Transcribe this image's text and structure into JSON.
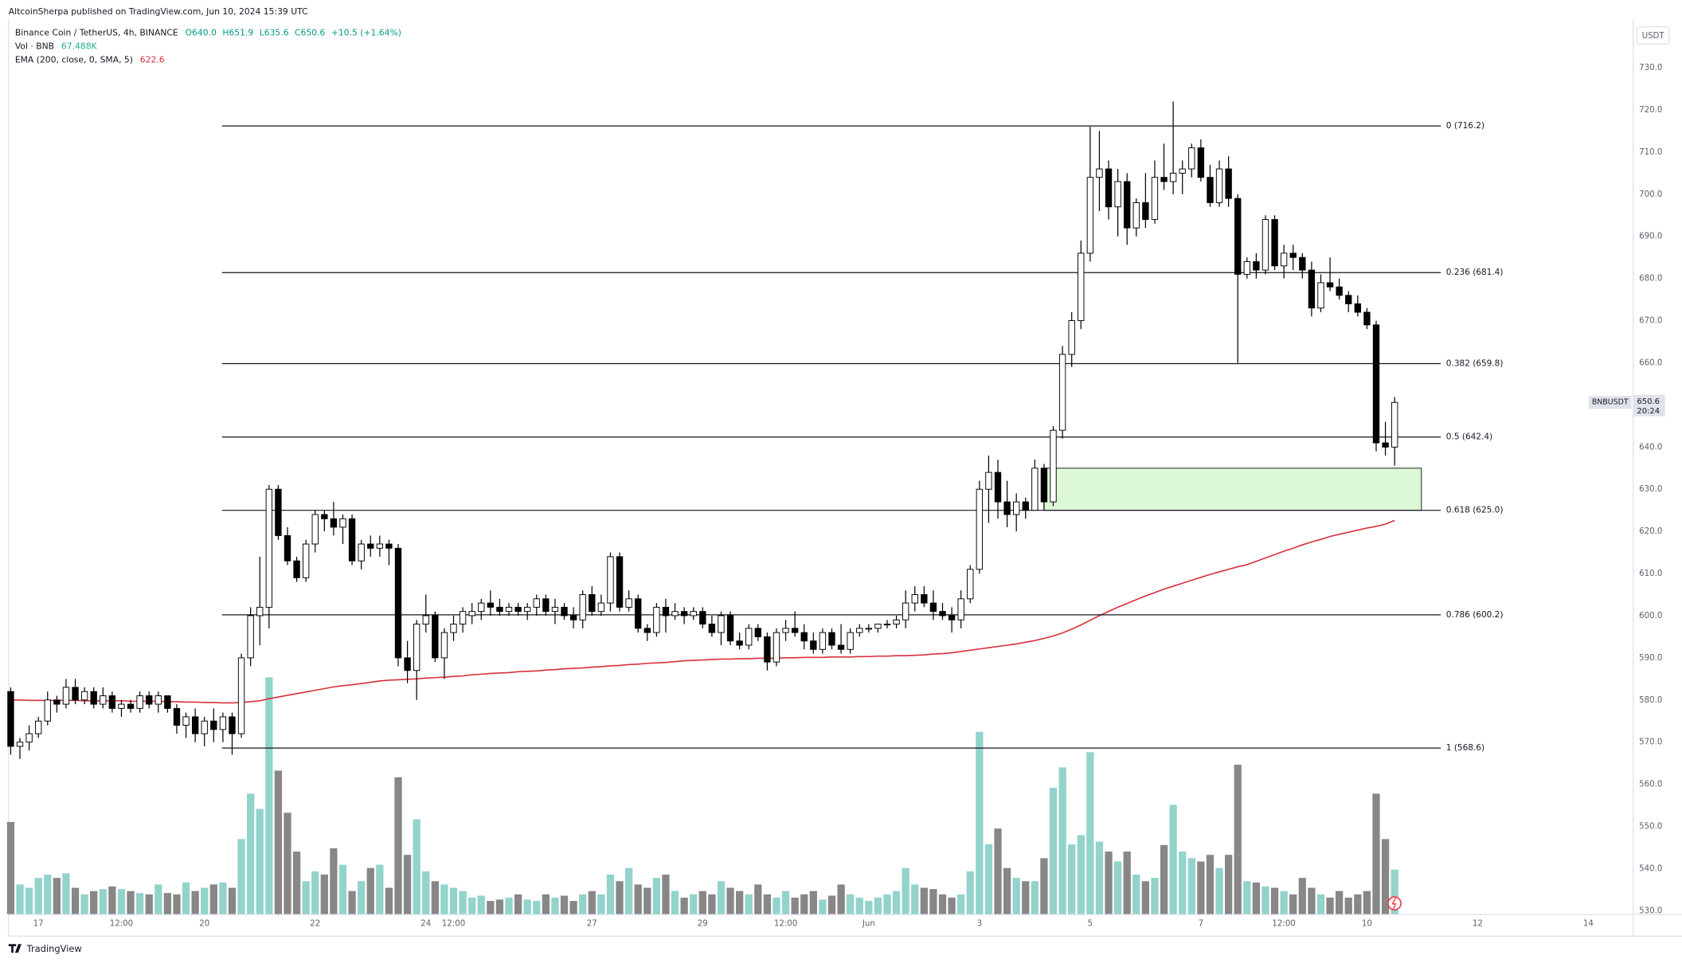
{
  "header": {
    "published": "AltcoinSherpa published on TradingView.com, Jun 10, 2024 15:39 UTC",
    "symbol": "Binance Coin / TetherUS, 4h, BINANCE",
    "ohlc": [
      "O640.0",
      "H651.9",
      "L635.6",
      "C650.6",
      "+10.5 (+1.64%)"
    ],
    "volume_label": "Vol · BNB",
    "volume_value": "67.488K",
    "ema_label": "EMA (200, close, 0, SMA, 5)",
    "ema_value": "622.6",
    "logo": "TradingView"
  },
  "chart_data": {
    "type": "candlestick",
    "currency": "USDT",
    "symbol_tag": "BNBUSDT",
    "last_price": 650.6,
    "countdown": "20:24",
    "up_color": "#ffffff",
    "down_color": "#000000",
    "open": [
      582,
      569,
      570,
      572,
      575,
      580,
      579,
      583,
      580,
      582,
      579,
      581,
      578,
      579,
      578,
      581,
      579,
      581,
      578,
      574,
      576,
      572,
      575,
      573,
      576,
      572,
      590,
      600,
      602,
      630,
      619,
      613,
      609,
      617,
      624,
      623,
      621,
      623,
      613,
      617,
      616,
      617,
      616,
      590,
      587,
      598,
      600,
      590,
      596,
      598,
      600,
      601,
      603,
      602,
      601,
      602,
      601,
      602,
      604,
      601,
      602,
      600,
      599,
      605,
      601,
      603,
      614,
      602,
      604,
      597,
      596,
      602,
      600,
      601,
      600,
      601,
      598,
      596,
      600,
      594,
      593,
      597,
      595,
      589,
      596,
      597,
      596,
      594,
      592,
      596,
      593,
      592,
      596,
      597,
      597,
      598,
      598,
      599,
      603,
      605,
      603,
      601,
      600,
      599,
      604,
      611,
      630,
      634,
      627,
      624,
      627,
      625,
      635,
      627,
      644,
      662,
      670,
      686,
      704,
      706,
      697,
      703,
      692,
      698,
      694,
      704,
      703,
      705,
      706,
      711,
      704,
      698,
      706,
      699,
      681,
      684,
      682,
      694,
      683,
      686,
      685,
      682,
      673,
      679,
      678,
      676,
      674,
      672,
      669,
      641,
      640
    ],
    "high": [
      583,
      571,
      574,
      576,
      582,
      581,
      585,
      585,
      583,
      583,
      583,
      582,
      580,
      580,
      582,
      582,
      582,
      581,
      579,
      577,
      578,
      576,
      578,
      577,
      577,
      591,
      602,
      614,
      631,
      631,
      621,
      614,
      618,
      625,
      625,
      627,
      624,
      624,
      618,
      619,
      619,
      618,
      617,
      594,
      599,
      605,
      601,
      597,
      600,
      602,
      603,
      604,
      606,
      604,
      603,
      603,
      603,
      605,
      605,
      604,
      603,
      602,
      606,
      607,
      605,
      615,
      615,
      606,
      605,
      598,
      603,
      604,
      603,
      602,
      602,
      602,
      600,
      601,
      601,
      596,
      598,
      598,
      596,
      597,
      599,
      601,
      598,
      596,
      597,
      597,
      598,
      597,
      598,
      598,
      598,
      599,
      600,
      606,
      607,
      607,
      606,
      603,
      602,
      606,
      612,
      632,
      638,
      637,
      632,
      629,
      628,
      637,
      636,
      645,
      664,
      672,
      689,
      716,
      715,
      708,
      706,
      705,
      699,
      705,
      708,
      712,
      722,
      708,
      712,
      713,
      707,
      708,
      709,
      700,
      685,
      686,
      695,
      695,
      688,
      688,
      686,
      684,
      681,
      685,
      680,
      677,
      676,
      673,
      670,
      646,
      651.9
    ],
    "low": [
      567,
      566,
      568,
      571,
      574,
      577,
      578,
      579,
      579,
      578,
      578,
      577,
      576,
      577,
      577,
      578,
      577,
      577,
      572,
      571,
      570,
      569,
      570,
      570,
      567,
      571,
      588,
      593,
      597,
      618,
      612,
      608,
      608,
      615,
      620,
      619,
      617,
      612,
      611,
      614,
      614,
      612,
      588,
      584,
      580,
      596,
      589,
      585,
      594,
      596,
      598,
      599,
      600,
      600,
      600,
      600,
      599,
      600,
      600,
      598,
      599,
      597,
      597,
      600,
      600,
      601,
      601,
      601,
      596,
      594,
      595,
      596,
      599,
      598,
      599,
      597,
      595,
      593,
      593,
      592,
      592,
      594,
      587,
      588,
      594,
      595,
      592,
      591,
      591,
      592,
      591,
      591,
      595,
      596,
      596,
      597,
      597,
      597,
      601,
      602,
      599,
      599,
      596,
      597,
      603,
      610,
      622,
      623,
      621,
      620,
      623,
      625,
      625,
      626,
      642,
      659,
      668,
      684,
      696,
      694,
      690,
      688,
      690,
      692,
      693,
      701,
      700,
      700,
      704,
      703,
      697,
      697,
      697,
      660,
      680,
      680,
      681,
      682,
      680,
      682,
      680,
      671,
      672,
      677,
      675,
      672,
      671,
      668,
      639,
      638,
      635.6
    ],
    "close": [
      569,
      570,
      572,
      575,
      580,
      579,
      583,
      580,
      582,
      579,
      581,
      578,
      579,
      578,
      581,
      579,
      581,
      578,
      574,
      576,
      572,
      575,
      573,
      576,
      572,
      590,
      600,
      602,
      630,
      619,
      613,
      609,
      617,
      624,
      623,
      621,
      623,
      613,
      617,
      616,
      617,
      616,
      590,
      587,
      598,
      600,
      590,
      596,
      598,
      601,
      601,
      603,
      602,
      601,
      602,
      601,
      602,
      604,
      601,
      602,
      600,
      599,
      605,
      601,
      603,
      614,
      602,
      604,
      597,
      596,
      602,
      600,
      601,
      600,
      601,
      598,
      596,
      600,
      594,
      593,
      597,
      595,
      589,
      596,
      597,
      596,
      594,
      592,
      596,
      593,
      592,
      596,
      597,
      597,
      598,
      598,
      599,
      603,
      605,
      603,
      601,
      600,
      599,
      604,
      611,
      630,
      634,
      627,
      624,
      627,
      625,
      635,
      627,
      644,
      662,
      670,
      686,
      704,
      706,
      697,
      703,
      692,
      698,
      694,
      704,
      703,
      705,
      706,
      711,
      704,
      698,
      706,
      699,
      681,
      684,
      682,
      694,
      683,
      686,
      685,
      682,
      673,
      679,
      678,
      676,
      674,
      672,
      669,
      641,
      640,
      650.6
    ],
    "volume": {
      "up_color": "#92d3cc",
      "down_color": "#878787",
      "ylim": [
        0,
        1360
      ],
      "values": [
        140,
        45,
        40,
        55,
        60,
        55,
        62,
        40,
        30,
        35,
        38,
        42,
        38,
        35,
        32,
        30,
        45,
        32,
        30,
        48,
        35,
        40,
        45,
        48,
        40,
        114,
        183,
        160,
        360,
        218,
        154,
        95,
        50,
        65,
        60,
        100,
        75,
        35,
        50,
        70,
        75,
        40,
        208,
        90,
        144,
        65,
        50,
        45,
        40,
        35,
        25,
        28,
        20,
        22,
        25,
        30,
        22,
        20,
        30,
        25,
        28,
        20,
        30,
        35,
        30,
        60,
        50,
        70,
        45,
        40,
        55,
        60,
        35,
        25,
        30,
        35,
        30,
        50,
        40,
        35,
        30,
        45,
        30,
        25,
        35,
        25,
        30,
        35,
        22,
        28,
        45,
        30,
        25,
        20,
        25,
        30,
        35,
        70,
        45,
        40,
        38,
        30,
        25,
        30,
        65,
        277,
        106,
        130,
        70,
        55,
        50,
        50,
        85,
        192,
        223,
        106,
        120,
        246,
        110,
        95,
        80,
        95,
        60,
        50,
        55,
        105,
        166,
        95,
        85,
        80,
        90,
        70,
        90,
        227,
        50,
        48,
        42,
        40,
        35,
        30,
        55,
        40,
        30,
        25,
        35,
        25,
        30,
        35,
        183,
        114,
        67.488
      ]
    },
    "ema": {
      "color": "#d7313d",
      "values": [
        580.0,
        580.0,
        579.9,
        579.9,
        579.9,
        579.9,
        579.9,
        579.9,
        579.8,
        579.8,
        579.8,
        579.8,
        579.8,
        579.7,
        579.7,
        579.7,
        579.7,
        579.6,
        579.6,
        579.5,
        579.5,
        579.4,
        579.4,
        579.3,
        579.3,
        579.4,
        579.6,
        579.8,
        580.3,
        580.7,
        581.1,
        581.5,
        581.9,
        582.3,
        582.7,
        583.1,
        583.4,
        583.6,
        583.9,
        584.2,
        584.5,
        584.7,
        584.8,
        584.9,
        585.0,
        585.2,
        585.3,
        585.4,
        585.6,
        585.7,
        586.0,
        586.1,
        586.3,
        586.4,
        586.5,
        586.7,
        586.8,
        586.9,
        587.1,
        587.2,
        587.4,
        587.5,
        587.6,
        587.8,
        587.9,
        588.1,
        588.2,
        588.4,
        588.5,
        588.7,
        588.8,
        588.9,
        589.1,
        589.3,
        589.4,
        589.5,
        589.6,
        589.7,
        589.7,
        589.8,
        589.8,
        589.9,
        589.9,
        589.9,
        590.0,
        590.0,
        590.1,
        590.1,
        590.1,
        590.2,
        590.2,
        590.2,
        590.3,
        590.3,
        590.4,
        590.4,
        590.5,
        590.5,
        590.6,
        590.7,
        590.9,
        591.0,
        591.2,
        591.5,
        591.8,
        592.1,
        592.4,
        592.7,
        593.0,
        593.3,
        593.7,
        594.1,
        594.6,
        595.2,
        595.9,
        596.8,
        597.8,
        598.9,
        600.0,
        601.0,
        602.0,
        602.9,
        603.8,
        604.7,
        605.5,
        606.3,
        607.0,
        607.7,
        608.4,
        609.1,
        609.8,
        610.4,
        611.0,
        611.6,
        612.1,
        612.9,
        613.7,
        614.5,
        615.3,
        616.0,
        616.8,
        617.5,
        618.1,
        618.8,
        619.3,
        619.8,
        620.3,
        620.8,
        621.2,
        621.7,
        622.6
      ]
    },
    "fib": {
      "color": "#131722",
      "x": [
        22.9,
        155
      ],
      "levels": [
        {
          "value": 716.2,
          "label": "0 (716.2)"
        },
        {
          "value": 681.4,
          "label": "0.236 (681.4)"
        },
        {
          "value": 659.8,
          "label": "0.382 (659.8)"
        },
        {
          "value": 642.4,
          "label": "0.5 (642.4)"
        },
        {
          "value": 625.0,
          "label": "0.618 (625.0)"
        },
        {
          "value": 600.2,
          "label": "0.786 (600.2)"
        },
        {
          "value": 568.6,
          "label": "1 (568.6)"
        }
      ]
    },
    "zone": {
      "low": 625,
      "high": 635,
      "x": [
        112,
        152.9
      ],
      "color": "#dcf8d6"
    },
    "xlim": [
      -0.23,
      175.8
    ],
    "ylim": [
      529.2,
      741.5
    ],
    "yticks": [
      {
        "value": 530,
        "label": "530.0"
      },
      {
        "value": 540,
        "label": "540.0"
      },
      {
        "value": 550,
        "label": "550.0"
      },
      {
        "value": 560,
        "label": "560.0"
      },
      {
        "value": 570,
        "label": "570.0"
      },
      {
        "value": 580,
        "label": "580.0"
      },
      {
        "value": 590,
        "label": "590.0"
      },
      {
        "value": 600,
        "label": "600.0"
      },
      {
        "value": 610,
        "label": "610.0"
      },
      {
        "value": 620,
        "label": "620.0"
      },
      {
        "value": 630,
        "label": "630.0"
      },
      {
        "value": 640,
        "label": "640.0"
      },
      {
        "value": 650,
        "label": "650.0"
      },
      {
        "value": 660,
        "label": "660.0"
      },
      {
        "value": 670,
        "label": "670.0"
      },
      {
        "value": 680,
        "label": "680.0"
      },
      {
        "value": 690,
        "label": "690.0"
      },
      {
        "value": 700,
        "label": "700.0"
      },
      {
        "value": 710,
        "label": "710.0"
      },
      {
        "value": 720,
        "label": "720.0"
      },
      {
        "value": 730,
        "label": "730.0"
      }
    ],
    "xticks": [
      {
        "value": 3,
        "label": "17"
      },
      {
        "value": 12,
        "label": "12:00"
      },
      {
        "value": 21,
        "label": "20"
      },
      {
        "value": 33,
        "label": "22"
      },
      {
        "value": 45,
        "label": "24"
      },
      {
        "value": 48,
        "label": "12:00"
      },
      {
        "value": 63,
        "label": "27"
      },
      {
        "value": 75,
        "label": "29"
      },
      {
        "value": 84,
        "label": "12:00"
      },
      {
        "value": 93,
        "label": "Jun"
      },
      {
        "value": 105,
        "label": "3"
      },
      {
        "value": 117,
        "label": "5"
      },
      {
        "value": 129,
        "label": "7"
      },
      {
        "value": 138,
        "label": "12:00"
      },
      {
        "value": 147,
        "label": "10"
      },
      {
        "value": 159,
        "label": "12"
      },
      {
        "value": 171,
        "label": "14"
      }
    ],
    "grid": false
  }
}
